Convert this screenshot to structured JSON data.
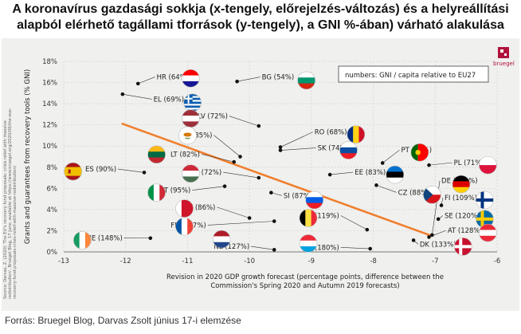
{
  "header": {
    "title_line1": "A koronavírus gazdasági sokkja (x-tengely, előrejelzés-változás)  és a helyreállítási",
    "title_line2": "alapból elérhető tagállami tforrások (y-tengely), a GNI %-ában) várható alakulása"
  },
  "footer": {
    "source": "Forrás: Bruegel Blog, Darvas Zsolt június 17-i elemzése"
  },
  "brand": {
    "name": "bruegel",
    "color": "#b0123b"
  },
  "side_note_lines": [
    "Source: Darvas, Z. (2020) 'The EU's recovery fund proposals: crisis relief with massive",
    "redistribution', Bruegel Blog, 17 June, available at https://www.bruegel.org/2020/06/the-eus-",
    "recovery-fund-proposals-crisis-relief-with-massive-redistribution/"
  ],
  "chart_data": {
    "type": "scatter",
    "xlabel_line1": "Revision in 2020 GDP growth forecast (percentage points, difference between the",
    "xlabel_line2": "Commission's Spring 2020 and Autumn 2019 forecasts)",
    "ylabel": "Grants and guarantees from recovery tools (% GNI)",
    "xlim": [
      -13,
      -6
    ],
    "ylim": [
      0,
      18
    ],
    "x_ticks": [
      "-13",
      "-12",
      "-11",
      "-10",
      "-9",
      "-8",
      "-7",
      "-6"
    ],
    "y_ticks": [
      "0%",
      "2%",
      "4%",
      "6%",
      "8%",
      "10%",
      "12%",
      "14%",
      "16%",
      "18%"
    ],
    "legend_note": "numbers: GNI / capita relative to EU27",
    "grid": true,
    "trendline": {
      "x": [
        -12.05,
        -7.05
      ],
      "y": [
        12.1,
        1.5
      ],
      "color": "#f07f2f"
    },
    "points": [
      {
        "label": "HR (64%)",
        "x": -11.8,
        "y": 15.9,
        "lx": -11.5,
        "ly": 16.3,
        "flag": "HR",
        "fx": -10.95,
        "fy": 16.4
      },
      {
        "label": "BG (54%)",
        "x": -10.2,
        "y": 16.1,
        "lx": -9.8,
        "ly": 16.3,
        "flag": "BG",
        "fx": -9.08,
        "fy": 16.2
      },
      {
        "label": "EL (69%)",
        "x": -12.05,
        "y": 14.9,
        "lx": -11.55,
        "ly": 14.2,
        "flag": "EL",
        "fx": -10.92,
        "fy": 14.1
      },
      {
        "label": "LV (72%)",
        "x": -9.85,
        "y": 11.9,
        "lx": -10.35,
        "ly": 12.6,
        "flag": "LV",
        "fx": -10.95,
        "fy": 12.6
      },
      {
        "label": "RO (68%)",
        "x": -9.5,
        "y": 9.9,
        "lx": -8.95,
        "ly": 11.1,
        "flag": "RO",
        "fx": -8.28,
        "fy": 11.1
      },
      {
        "label": "CY (85%)",
        "x": -10.15,
        "y": 9.0,
        "lx": -10.6,
        "ly": 10.8,
        "flag": "CY",
        "fx": -11.0,
        "fy": 11.0
      },
      {
        "label": "SK (74%)",
        "x": -9.5,
        "y": 9.6,
        "lx": -8.9,
        "ly": 9.6,
        "flag": "SK",
        "fx": -8.4,
        "fy": 9.6
      },
      {
        "label": "PT (77%)",
        "x": -7.85,
        "y": 8.4,
        "lx": -7.55,
        "ly": 9.4,
        "flag": "PT",
        "fx": -7.25,
        "fy": 9.4
      },
      {
        "label": "LT (82%)",
        "x": -10.25,
        "y": 8.5,
        "lx": -10.8,
        "ly": 9.0,
        "flag": "LT",
        "fx": -11.5,
        "fy": 9.2
      },
      {
        "label": "PL (71%)",
        "x": -7.1,
        "y": 8.2,
        "lx": -6.7,
        "ly": 8.2,
        "flag": "PL",
        "fx": -6.15,
        "fy": 8.2
      },
      {
        "label": "ES (90%)",
        "x": -11.7,
        "y": 7.5,
        "lx": -12.15,
        "ly": 7.6,
        "flag": "ES",
        "fx": -12.85,
        "fy": 7.6
      },
      {
        "label": "HU (72%)",
        "x": -9.85,
        "y": 7.0,
        "lx": -10.45,
        "ly": 7.3,
        "flag": "HU",
        "fx": -10.95,
        "fy": 7.4
      },
      {
        "label": "EE (83%)",
        "x": -8.7,
        "y": 7.3,
        "lx": -8.3,
        "ly": 7.3,
        "flag": "EE",
        "fx": -7.65,
        "fy": 7.3
      },
      {
        "label": "DE (126%)",
        "x": -7.05,
        "y": 1.6,
        "lx": -6.9,
        "ly": 6.5,
        "flag": "DE",
        "fx": -6.58,
        "fy": 6.4
      },
      {
        "label": "IT (95%)",
        "x": -10.4,
        "y": 6.2,
        "lx": -10.95,
        "ly": 5.6,
        "flag": "IT",
        "fx": -11.5,
        "fy": 5.6
      },
      {
        "label": "SI (87%)",
        "x": -9.65,
        "y": 5.6,
        "lx": -9.45,
        "ly": 5.1,
        "flag": "SI",
        "fx": -8.95,
        "fy": 4.9
      },
      {
        "label": "CZ (88%)",
        "x": -7.95,
        "y": 6.3,
        "lx": -7.6,
        "ly": 5.4,
        "flag": "CZ",
        "fx": -7.05,
        "fy": 5.4
      },
      {
        "label": "FI (109%)",
        "x": -6.9,
        "y": 4.4,
        "lx": -6.85,
        "ly": 4.9,
        "flag": "FI",
        "fx": -6.2,
        "fy": 4.9
      },
      {
        "label": "MT (86%)",
        "x": -10.0,
        "y": 3.2,
        "lx": -10.55,
        "ly": 4.0,
        "flag": "MT",
        "fx": -11.05,
        "fy": 4.1
      },
      {
        "label": "BE (119%)",
        "x": -8.1,
        "y": 2.1,
        "lx": -8.55,
        "ly": 3.2,
        "flag": "BE",
        "fx": -9.05,
        "fy": 3.2
      },
      {
        "label": "SE (120%)",
        "x": -6.95,
        "y": 3.1,
        "lx": -6.85,
        "ly": 3.2,
        "flag": "SE",
        "fx": -6.2,
        "fy": 3.1
      },
      {
        "label": "FR (107%)",
        "x": -9.6,
        "y": 2.9,
        "lx": -10.7,
        "ly": 2.3,
        "flag": "FR",
        "fx": -11.05,
        "fy": 2.4
      },
      {
        "label": "NL (127%)",
        "x": -9.6,
        "y": 0.2,
        "lx": -10.0,
        "ly": 0.3,
        "flag": "NL",
        "fx": -10.45,
        "fy": 1.2
      },
      {
        "label": "LU (180%)",
        "x": -8.05,
        "y": 0.3,
        "lx": -8.55,
        "ly": 0.2,
        "flag": "LU",
        "fx": -9.05,
        "fy": 0.8
      },
      {
        "label": "AT (128%)",
        "x": -7.1,
        "y": 1.4,
        "lx": -6.8,
        "ly": 1.8,
        "flag": "AT",
        "fx": -6.15,
        "fy": 1.8
      },
      {
        "label": "DK (133%)",
        "x": -7.35,
        "y": 1.1,
        "lx": -7.25,
        "ly": 0.5,
        "flag": "DK",
        "fx": -6.55,
        "fy": 0.5
      },
      {
        "label": "IE (148%)",
        "x": -11.6,
        "y": 1.3,
        "lx": -12.05,
        "ly": 1.1,
        "flag": "IE",
        "fx": -12.7,
        "fy": 1.1
      }
    ]
  },
  "flags": {
    "HR": {
      "type": "h",
      "colors": [
        "#ff0000",
        "#ffffff",
        "#171796"
      ]
    },
    "BG": {
      "type": "h",
      "colors": [
        "#ffffff",
        "#00966e",
        "#d62612"
      ]
    },
    "EL": {
      "type": "greece",
      "colors": [
        "#0d5eaf",
        "#ffffff"
      ]
    },
    "LV": {
      "type": "h",
      "colors": [
        "#9e3039",
        "#ffffff",
        "#9e3039"
      ]
    },
    "RO": {
      "type": "v",
      "colors": [
        "#002b7f",
        "#fcd116",
        "#ce1126"
      ]
    },
    "CY": {
      "type": "plain",
      "colors": [
        "#ffffff",
        "#d57800"
      ]
    },
    "SK": {
      "type": "h",
      "colors": [
        "#ffffff",
        "#0b4ea2",
        "#ee1c25"
      ]
    },
    "PT": {
      "type": "v2",
      "colors": [
        "#006600",
        "#ff0000"
      ]
    },
    "LT": {
      "type": "h",
      "colors": [
        "#fdb913",
        "#006a44",
        "#c1272d"
      ]
    },
    "PL": {
      "type": "h2",
      "colors": [
        "#ffffff",
        "#dc143c"
      ]
    },
    "ES": {
      "type": "spain",
      "colors": [
        "#aa151b",
        "#f1bf00"
      ]
    },
    "HU": {
      "type": "h",
      "colors": [
        "#ce2939",
        "#ffffff",
        "#477050"
      ]
    },
    "EE": {
      "type": "h",
      "colors": [
        "#0072ce",
        "#000000",
        "#ffffff"
      ]
    },
    "DE": {
      "type": "h",
      "colors": [
        "#000000",
        "#dd0000",
        "#ffce00"
      ]
    },
    "IT": {
      "type": "v",
      "colors": [
        "#009246",
        "#ffffff",
        "#ce2b37"
      ]
    },
    "SI": {
      "type": "h",
      "colors": [
        "#ffffff",
        "#005ce5",
        "#ed1c24"
      ]
    },
    "CZ": {
      "type": "czech",
      "colors": [
        "#ffffff",
        "#d7141a",
        "#11457e"
      ]
    },
    "FI": {
      "type": "nordic",
      "colors": [
        "#ffffff",
        "#003580"
      ]
    },
    "MT": {
      "type": "v",
      "colors": [
        "#ffffff",
        "#cf142b",
        "#cf142b"
      ]
    },
    "BE": {
      "type": "v",
      "colors": [
        "#000000",
        "#fae042",
        "#ed2939"
      ]
    },
    "SE": {
      "type": "nordic",
      "colors": [
        "#006aa7",
        "#fecc00"
      ]
    },
    "FR": {
      "type": "v",
      "colors": [
        "#0055a4",
        "#ffffff",
        "#ef4135"
      ]
    },
    "NL": {
      "type": "h",
      "colors": [
        "#ae1c28",
        "#ffffff",
        "#21468b"
      ]
    },
    "LU": {
      "type": "h",
      "colors": [
        "#ed2939",
        "#ffffff",
        "#00a1de"
      ]
    },
    "AT": {
      "type": "h",
      "colors": [
        "#ed2939",
        "#ffffff",
        "#ed2939"
      ]
    },
    "DK": {
      "type": "nordic",
      "colors": [
        "#c8102e",
        "#ffffff"
      ]
    },
    "IE": {
      "type": "v",
      "colors": [
        "#169b62",
        "#ffffff",
        "#ff883e"
      ]
    }
  }
}
